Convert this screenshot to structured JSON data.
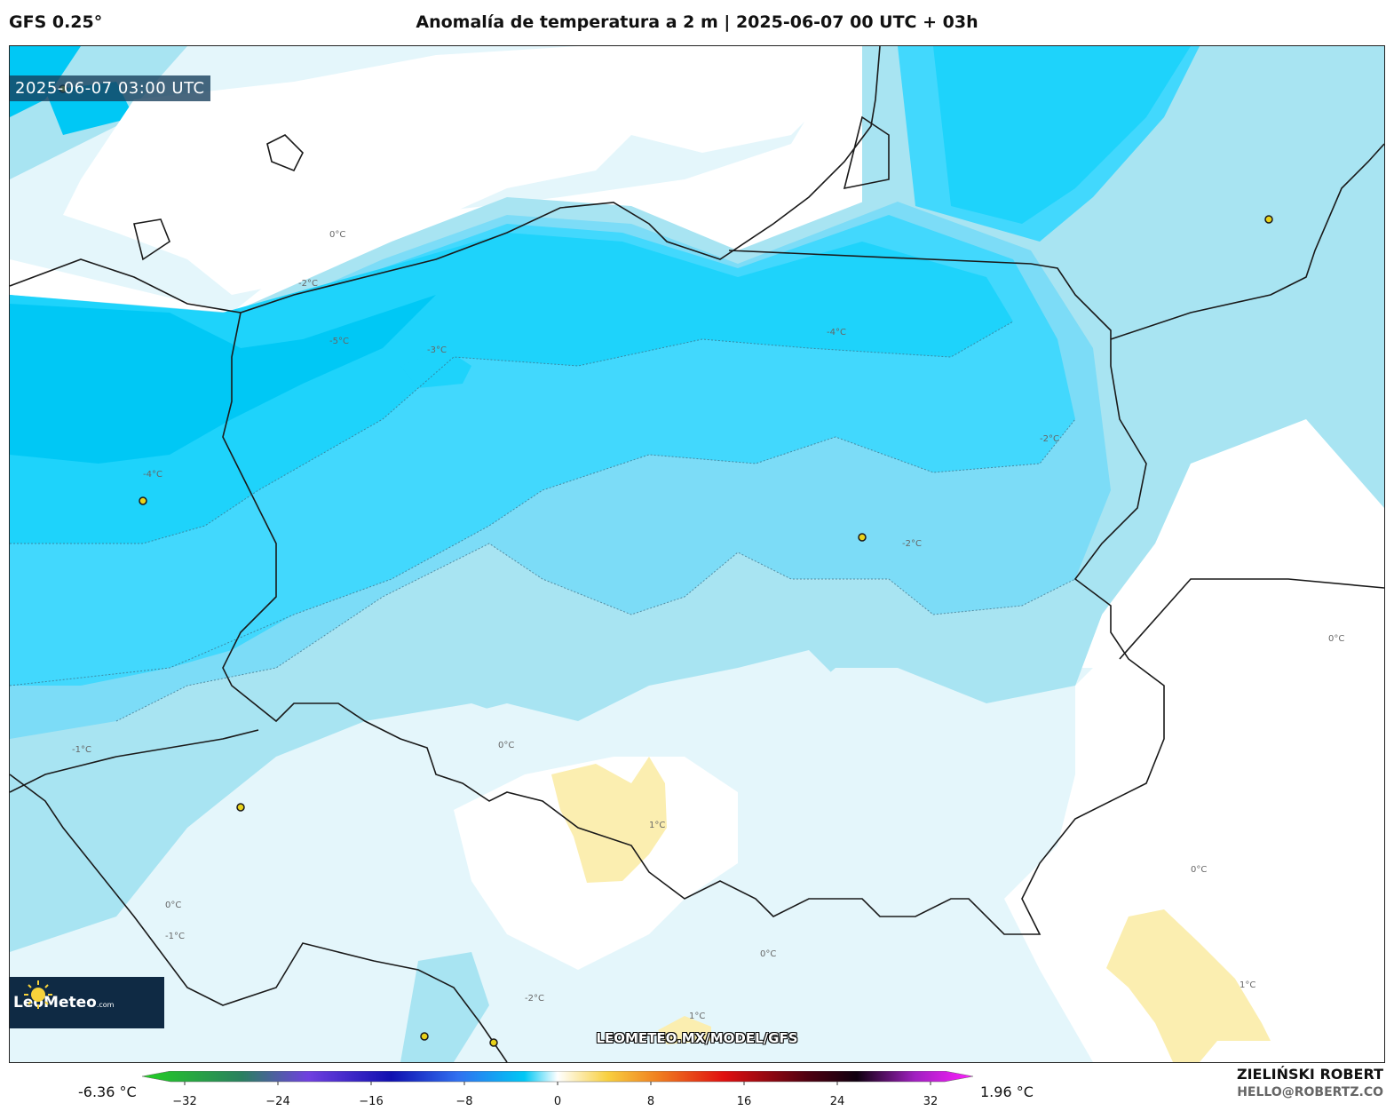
{
  "header": {
    "model": "GFS 0.25°",
    "title": "Anomalía de temperatura a 2 m | 2025-06-07 00 UTC + 03h"
  },
  "map": {
    "timestamp": "2025-06-07 03:00 UTC",
    "watermark": "LEOMETEO.MX/MODEL/GFS",
    "logo": {
      "name": "LeoMeteo",
      "suffix": ".com"
    },
    "contour_labels": [
      "-5°C",
      "-4°C",
      "-3°C",
      "-2°C",
      "-1°C",
      "0°C",
      "1°C"
    ],
    "colors": {
      "minus5": "#00c8f5",
      "minus4": "#1ed3fb",
      "minus3": "#42d8fd",
      "minus2": "#7cdcf7",
      "minus1": "#a8e4f2",
      "zero": "#e4f6fb",
      "plus1": "#fbeeb0"
    }
  },
  "colorbar": {
    "min_label": "-6.36 °C",
    "max_label": "1.96 °C",
    "ticks": [
      "−32",
      "−24",
      "−16",
      "−8",
      "0",
      "8",
      "16",
      "24",
      "32"
    ],
    "range": [
      -32,
      32
    ]
  },
  "credits": {
    "name": "ZIELIŃSKI ROBERT",
    "email": "HELLO@ROBERTZ.CO"
  }
}
